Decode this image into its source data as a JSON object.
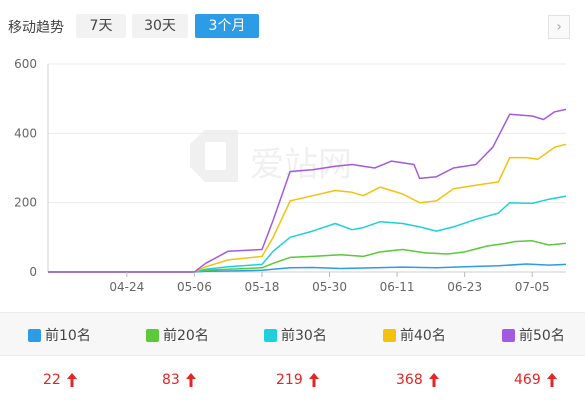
{
  "header": {
    "title": "移动趋势",
    "ranges": [
      "7天",
      "30天",
      "3个月"
    ],
    "active_range": "3个月",
    "next_icon": "chevron-right-icon"
  },
  "watermark": "爱站网",
  "legend": [
    {
      "label": "前10名",
      "color": "#2d9ce6"
    },
    {
      "label": "前20名",
      "color": "#5ac93a"
    },
    {
      "label": "前30名",
      "color": "#1fcfdc"
    },
    {
      "label": "前40名",
      "color": "#f4c20d"
    },
    {
      "label": "前50名",
      "color": "#a45ae0"
    }
  ],
  "latest_values": [
    "22",
    "83",
    "219",
    "368",
    "469"
  ],
  "chart_data": {
    "type": "line",
    "xlabel": "",
    "ylabel": "",
    "ylim": [
      0,
      600
    ],
    "yticks": [
      "0",
      "200",
      "400",
      "600"
    ],
    "xticks": [
      "04-24",
      "05-06",
      "05-18",
      "05-30",
      "06-11",
      "06-23",
      "07-05"
    ],
    "grid": true,
    "series": [
      {
        "name": "前10名",
        "color": "#2d9ce6",
        "points": [
          [
            "04-10",
            0
          ],
          [
            "05-06",
            0
          ],
          [
            "05-08",
            2
          ],
          [
            "05-12",
            3
          ],
          [
            "05-18",
            5
          ],
          [
            "05-20",
            8
          ],
          [
            "05-23",
            12
          ],
          [
            "05-27",
            13
          ],
          [
            "06-01",
            10
          ],
          [
            "06-07",
            12
          ],
          [
            "06-12",
            14
          ],
          [
            "06-18",
            12
          ],
          [
            "06-23",
            15
          ],
          [
            "06-29",
            18
          ],
          [
            "07-04",
            23
          ],
          [
            "07-08",
            20
          ],
          [
            "07-11",
            22
          ]
        ]
      },
      {
        "name": "前20名",
        "color": "#5ac93a",
        "points": [
          [
            "04-10",
            0
          ],
          [
            "05-06",
            0
          ],
          [
            "05-08",
            5
          ],
          [
            "05-12",
            8
          ],
          [
            "05-18",
            12
          ],
          [
            "05-20",
            25
          ],
          [
            "05-23",
            42
          ],
          [
            "05-27",
            45
          ],
          [
            "06-01",
            50
          ],
          [
            "06-05",
            45
          ],
          [
            "06-08",
            58
          ],
          [
            "06-12",
            65
          ],
          [
            "06-16",
            55
          ],
          [
            "06-20",
            52
          ],
          [
            "06-23",
            58
          ],
          [
            "06-27",
            75
          ],
          [
            "06-30",
            82
          ],
          [
            "07-02",
            88
          ],
          [
            "07-05",
            90
          ],
          [
            "07-08",
            78
          ],
          [
            "07-11",
            83
          ]
        ]
      },
      {
        "name": "前30名",
        "color": "#1fcfdc",
        "points": [
          [
            "04-10",
            0
          ],
          [
            "05-06",
            0
          ],
          [
            "05-08",
            8
          ],
          [
            "05-12",
            15
          ],
          [
            "05-18",
            22
          ],
          [
            "05-20",
            60
          ],
          [
            "05-23",
            100
          ],
          [
            "05-27",
            118
          ],
          [
            "05-31",
            140
          ],
          [
            "06-03",
            122
          ],
          [
            "06-05",
            128
          ],
          [
            "06-08",
            145
          ],
          [
            "06-12",
            140
          ],
          [
            "06-15",
            130
          ],
          [
            "06-18",
            118
          ],
          [
            "06-21",
            130
          ],
          [
            "06-25",
            152
          ],
          [
            "06-29",
            170
          ],
          [
            "07-01",
            200
          ],
          [
            "07-05",
            198
          ],
          [
            "07-08",
            210
          ],
          [
            "07-11",
            219
          ]
        ]
      },
      {
        "name": "前40名",
        "color": "#f4c20d",
        "points": [
          [
            "04-10",
            0
          ],
          [
            "05-06",
            0
          ],
          [
            "05-08",
            15
          ],
          [
            "05-12",
            35
          ],
          [
            "05-18",
            45
          ],
          [
            "05-20",
            100
          ],
          [
            "05-23",
            205
          ],
          [
            "05-27",
            220
          ],
          [
            "05-31",
            235
          ],
          [
            "06-03",
            230
          ],
          [
            "06-05",
            220
          ],
          [
            "06-08",
            245
          ],
          [
            "06-12",
            225
          ],
          [
            "06-15",
            200
          ],
          [
            "06-18",
            205
          ],
          [
            "06-21",
            240
          ],
          [
            "06-25",
            250
          ],
          [
            "06-29",
            260
          ],
          [
            "07-01",
            330
          ],
          [
            "07-04",
            330
          ],
          [
            "07-06",
            325
          ],
          [
            "07-09",
            360
          ],
          [
            "07-11",
            368
          ]
        ]
      },
      {
        "name": "前50名",
        "color": "#a45ae0",
        "points": [
          [
            "04-10",
            0
          ],
          [
            "05-06",
            0
          ],
          [
            "05-08",
            25
          ],
          [
            "05-12",
            60
          ],
          [
            "05-18",
            65
          ],
          [
            "05-20",
            150
          ],
          [
            "05-23",
            290
          ],
          [
            "05-27",
            295
          ],
          [
            "05-31",
            305
          ],
          [
            "06-03",
            310
          ],
          [
            "06-07",
            300
          ],
          [
            "06-10",
            320
          ],
          [
            "06-14",
            310
          ],
          [
            "06-15",
            270
          ],
          [
            "06-18",
            275
          ],
          [
            "06-21",
            300
          ],
          [
            "06-25",
            310
          ],
          [
            "06-28",
            360
          ],
          [
            "07-01",
            455
          ],
          [
            "07-05",
            450
          ],
          [
            "07-07",
            440
          ],
          [
            "07-09",
            462
          ],
          [
            "07-11",
            469
          ]
        ]
      }
    ]
  }
}
